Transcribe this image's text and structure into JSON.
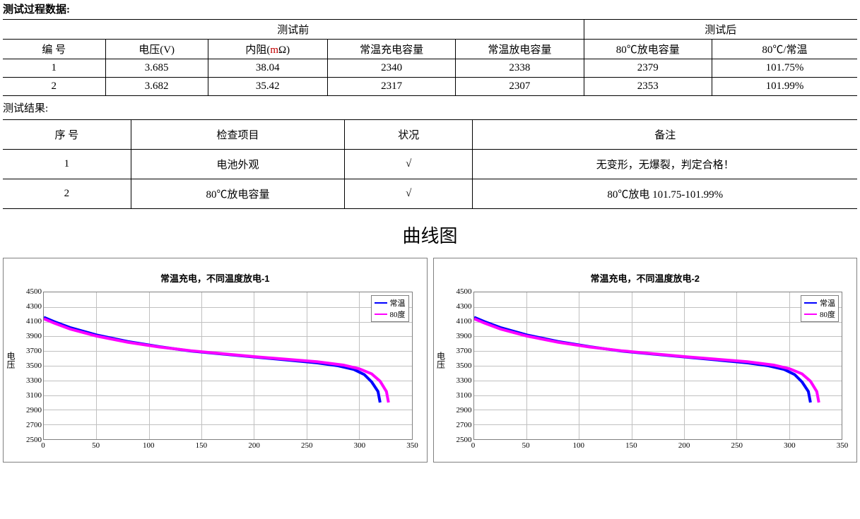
{
  "header_label": "测试过程数据:",
  "table1": {
    "group_before": "测试前",
    "group_after": "测试后",
    "columns": [
      "编 号",
      "电压(V)",
      "内阻(mΩ)",
      "常温充电容量",
      "常温放电容量",
      "80℃放电容量",
      "80℃/常温"
    ],
    "rows": [
      [
        "1",
        "3.685",
        "38.04",
        "2340",
        "2338",
        "2379",
        "101.75%"
      ],
      [
        "2",
        "3.682",
        "35.42",
        "2317",
        "2307",
        "2353",
        "101.99%"
      ]
    ],
    "col_widths_pct": [
      12,
      12,
      14,
      15,
      15,
      15,
      17
    ]
  },
  "result_label": "测试结果:",
  "table2": {
    "columns": [
      "序 号",
      "检查项目",
      "状况",
      "备注"
    ],
    "rows": [
      [
        "1",
        "电池外观",
        "√",
        "无变形，无爆裂，判定合格！"
      ],
      [
        "2",
        "80℃放电容量",
        "√",
        "80℃放电 101.75-101.99%"
      ]
    ],
    "col_widths_pct": [
      15,
      25,
      15,
      45
    ]
  },
  "chart_section_title": "曲线图",
  "charts": [
    {
      "title": "常温充电，不同温度放电-1",
      "ylabel": "电压",
      "y_min": 2500,
      "y_max": 4500,
      "y_step": 200,
      "x_min": 0,
      "x_max": 350,
      "x_step": 50,
      "grid_color": "#c0c0c0",
      "background_color": "#ffffff",
      "series": [
        {
          "name": "常温",
          "color": "#0000ff",
          "points": [
            [
              0,
              4160
            ],
            [
              10,
              4100
            ],
            [
              25,
              4020
            ],
            [
              50,
              3920
            ],
            [
              80,
              3830
            ],
            [
              110,
              3760
            ],
            [
              140,
              3700
            ],
            [
              170,
              3660
            ],
            [
              200,
              3620
            ],
            [
              230,
              3580
            ],
            [
              260,
              3540
            ],
            [
              280,
              3500
            ],
            [
              295,
              3450
            ],
            [
              305,
              3380
            ],
            [
              312,
              3280
            ],
            [
              318,
              3150
            ],
            [
              320,
              3000
            ]
          ]
        },
        {
          "name": "80度",
          "color": "#ff00ff",
          "points": [
            [
              0,
              4140
            ],
            [
              10,
              4080
            ],
            [
              25,
              4000
            ],
            [
              50,
              3905
            ],
            [
              80,
              3820
            ],
            [
              110,
              3755
            ],
            [
              140,
              3705
            ],
            [
              170,
              3665
            ],
            [
              200,
              3625
            ],
            [
              230,
              3590
            ],
            [
              260,
              3555
            ],
            [
              285,
              3510
            ],
            [
              300,
              3460
            ],
            [
              312,
              3390
            ],
            [
              320,
              3290
            ],
            [
              326,
              3150
            ],
            [
              328,
              3000
            ]
          ]
        }
      ]
    },
    {
      "title": "常温充电，不同温度放电-2",
      "ylabel": "电压",
      "y_min": 2500,
      "y_max": 4500,
      "y_step": 200,
      "x_min": 0,
      "x_max": 350,
      "x_step": 50,
      "grid_color": "#c0c0c0",
      "background_color": "#ffffff",
      "series": [
        {
          "name": "常温",
          "color": "#0000ff",
          "points": [
            [
              0,
              4160
            ],
            [
              10,
              4100
            ],
            [
              25,
              4020
            ],
            [
              50,
              3920
            ],
            [
              80,
              3830
            ],
            [
              110,
              3760
            ],
            [
              140,
              3700
            ],
            [
              170,
              3660
            ],
            [
              200,
              3620
            ],
            [
              230,
              3580
            ],
            [
              260,
              3540
            ],
            [
              280,
              3500
            ],
            [
              295,
              3450
            ],
            [
              305,
              3380
            ],
            [
              312,
              3280
            ],
            [
              318,
              3150
            ],
            [
              320,
              3000
            ]
          ]
        },
        {
          "name": "80度",
          "color": "#ff00ff",
          "points": [
            [
              0,
              4140
            ],
            [
              10,
              4080
            ],
            [
              25,
              4000
            ],
            [
              50,
              3905
            ],
            [
              80,
              3820
            ],
            [
              110,
              3755
            ],
            [
              140,
              3705
            ],
            [
              170,
              3665
            ],
            [
              200,
              3625
            ],
            [
              230,
              3590
            ],
            [
              260,
              3555
            ],
            [
              285,
              3510
            ],
            [
              300,
              3460
            ],
            [
              312,
              3390
            ],
            [
              320,
              3290
            ],
            [
              326,
              3150
            ],
            [
              328,
              3000
            ]
          ]
        }
      ]
    }
  ]
}
